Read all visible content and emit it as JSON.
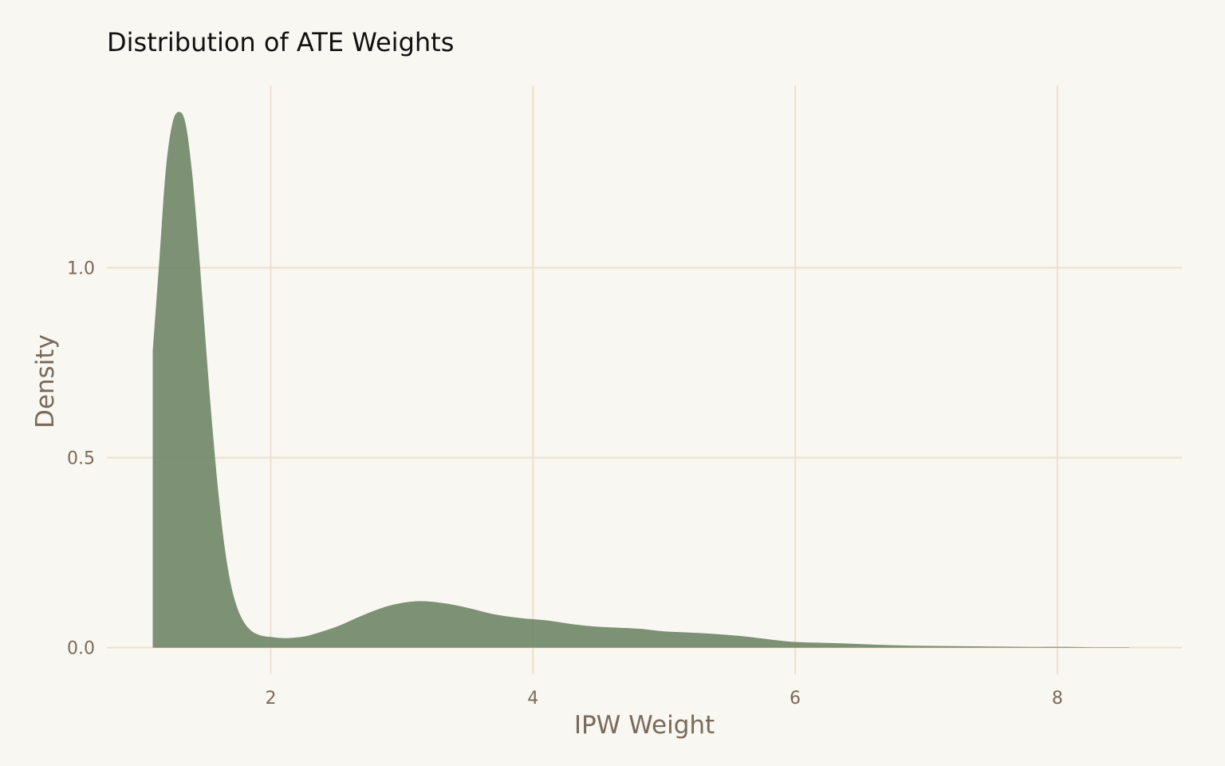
{
  "chart_data": {
    "type": "area",
    "title": "Distribution of ATE Weights",
    "xlabel": "IPW Weight",
    "ylabel": "Density",
    "xlim": [
      0.75,
      8.95
    ],
    "ylim": [
      -0.07,
      1.48
    ],
    "x_ticks": [
      2,
      4,
      6,
      8
    ],
    "x_tick_labels": [
      "2",
      "4",
      "6",
      "8"
    ],
    "y_ticks": [
      0.0,
      0.5,
      1.0
    ],
    "y_tick_labels": [
      "0.0",
      "0.5",
      "1.0"
    ],
    "grid": true,
    "legend": "none",
    "fill_color": "#6b8462",
    "fill_opacity": 0.88,
    "background_color": "#f9f7f2",
    "grid_color": "#ece0cd",
    "x": [
      1.1,
      1.15,
      1.2,
      1.25,
      1.3,
      1.35,
      1.4,
      1.45,
      1.5,
      1.55,
      1.6,
      1.65,
      1.7,
      1.75,
      1.8,
      1.85,
      1.9,
      1.95,
      2.0,
      2.1,
      2.2,
      2.3,
      2.5,
      2.7,
      2.9,
      3.1,
      3.3,
      3.5,
      3.7,
      3.9,
      4.1,
      4.3,
      4.5,
      4.8,
      5.0,
      5.3,
      5.6,
      5.8,
      6.0,
      6.3,
      6.6,
      6.9,
      7.2,
      7.5,
      7.8,
      8.1,
      8.3,
      8.55
    ],
    "y": [
      0.78,
      1.02,
      1.26,
      1.38,
      1.41,
      1.38,
      1.25,
      1.05,
      0.82,
      0.6,
      0.41,
      0.26,
      0.16,
      0.1,
      0.065,
      0.045,
      0.035,
      0.03,
      0.028,
      0.025,
      0.027,
      0.033,
      0.055,
      0.085,
      0.11,
      0.122,
      0.118,
      0.105,
      0.088,
      0.078,
      0.072,
      0.062,
      0.055,
      0.05,
      0.043,
      0.038,
      0.03,
      0.022,
      0.015,
      0.012,
      0.008,
      0.005,
      0.004,
      0.003,
      0.002,
      0.002,
      0.001,
      0.001
    ]
  }
}
